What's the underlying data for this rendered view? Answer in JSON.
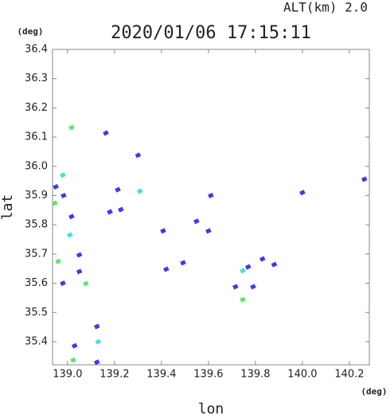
{
  "chart_data": {
    "type": "scatter",
    "title": "2020/01/06 17:15:11",
    "subtitle": "ALT(km) 2.0",
    "x_label": "lon",
    "y_label": "lat",
    "x_unit": "(deg)",
    "y_unit": "(deg)",
    "xlim": [
      138.936,
      140.285
    ],
    "ylim": [
      35.321,
      36.4
    ],
    "xticks": [
      {
        "value": 139.0,
        "label": "139.0"
      },
      139.2,
      139.4,
      139.6,
      139.8,
      {
        "value": 140.0,
        "label": "140.0"
      },
      140.2
    ],
    "yticks": [
      35.4,
      35.5,
      35.6,
      35.7,
      35.8,
      35.9,
      {
        "value": 36.0,
        "label": "36.0"
      },
      36.1,
      36.2,
      36.3,
      36.4
    ],
    "x": [
      139.017,
      139.163,
      138.98,
      138.95,
      138.983,
      138.946,
      139.017,
      139.01,
      138.96,
      139.078,
      138.98,
      139.125,
      139.03,
      139.13,
      139.125,
      139.024,
      139.214,
      139.308,
      139.18,
      139.407,
      139.42,
      139.549,
      139.6,
      139.746,
      139.769,
      139.83,
      139.88,
      139.715,
      139.746,
      139.79,
      140.264,
      140.0,
      139.3,
      139.05,
      139.05,
      139.227,
      139.492,
      139.61
    ],
    "y": [
      36.133,
      36.114,
      35.97,
      35.93,
      35.9,
      35.874,
      35.828,
      35.765,
      35.675,
      35.599,
      35.6,
      35.452,
      35.386,
      35.4,
      35.33,
      35.337,
      35.92,
      35.915,
      35.844,
      35.779,
      35.648,
      35.812,
      35.779,
      35.643,
      35.656,
      35.683,
      35.664,
      35.588,
      35.544,
      35.588,
      35.956,
      35.91,
      36.038,
      35.697,
      35.64,
      35.852,
      35.67,
      35.9
    ],
    "colors": [
      "#5ce86c",
      "#3b3bf0",
      "#3fe0e8",
      "#3b3bf0",
      "#3b3bf0",
      "#5ce86c",
      "#3b3bf0",
      "#3fe0e8",
      "#5ce86c",
      "#5ce86c",
      "#3b3bf0",
      "#3b3bf0",
      "#3b3bf0",
      "#3fe0e8",
      "#3b3bf0",
      "#5ce86c",
      "#3b3bf0",
      "#3fe0e8",
      "#3b3bf0",
      "#3b3bf0",
      "#3b3bf0",
      "#3b3bf0",
      "#3b3bf0",
      "#3fe0e8",
      "#3b3bf0",
      "#3b3bf0",
      "#3b3bf0",
      "#3b3bf0",
      "#5ce86c",
      "#3b3bf0",
      "#3b3bf0",
      "#3b3bf0",
      "#3b3bf0",
      "#3b3bf0",
      "#3b3bf0",
      "#3b3bf0",
      "#3b3bf0",
      "#3b3bf0"
    ]
  }
}
